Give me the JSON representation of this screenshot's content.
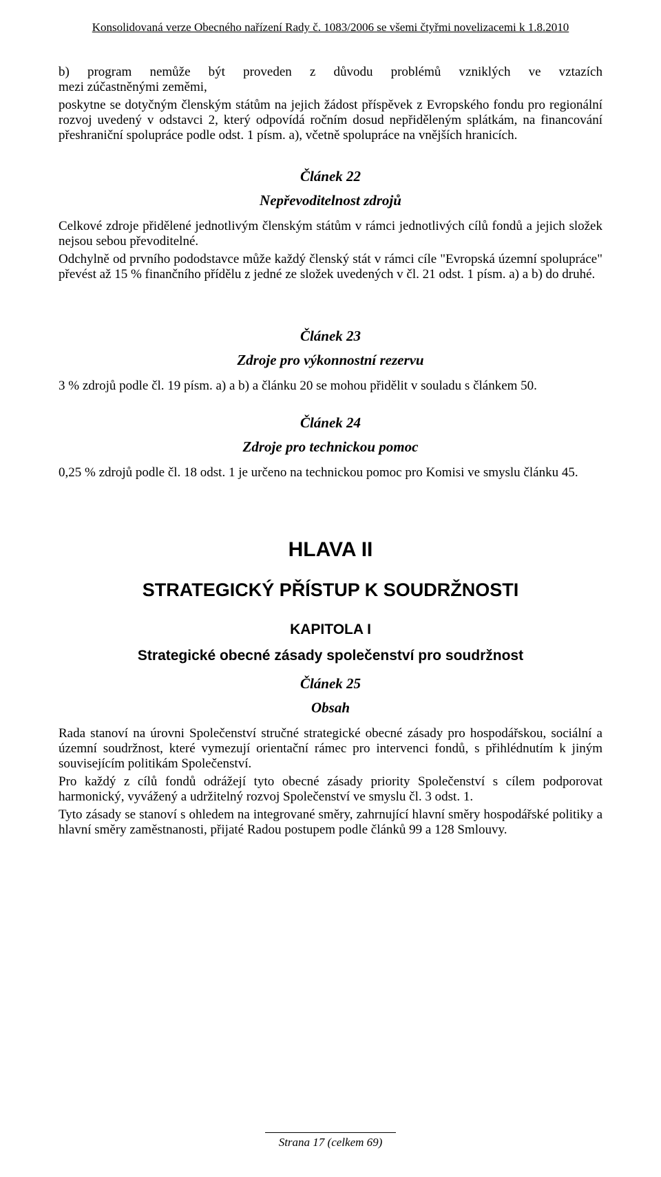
{
  "header": "Konsolidovaná verze Obecného nařízení Rady č. 1083/2006 se všemi čtyřmi novelizacemi k 1.8.2010",
  "intro": {
    "b_line1_parts": [
      "b)",
      "program",
      "nemůže",
      "být",
      "proveden",
      "z",
      "důvodu",
      "problémů",
      "vzniklých",
      "ve",
      "vztazích"
    ],
    "b_line2": "mezi zúčastněnými zeměmi,",
    "b_para2": "poskytne se dotyčným členským státům na jejich žádost příspěvek z Evropského fondu pro regionální rozvoj uvedený v odstavci 2, který odpovídá ročním dosud nepřiděleným splátkám, na financování přeshraniční spolupráce podle odst. 1 písm. a), včetně spolupráce na vnějších hranicích."
  },
  "art22": {
    "title": "Článek 22",
    "subtitle": "Nepřevoditelnost zdrojů",
    "p1": "Celkové zdroje přidělené jednotlivým členským státům v rámci jednotlivých cílů fondů a jejich složek nejsou sebou převoditelné.",
    "p2": "Odchylně od prvního pododstavce může každý členský stát v rámci cíle \"Evropská územní spolupráce\" převést až 15 % finančního přídělu z jedné ze složek uvedených v čl. 21 odst. 1 písm. a) a b) do druhé."
  },
  "art23": {
    "title": "Článek 23",
    "subtitle": "Zdroje pro výkonnostní rezervu",
    "p1": "3 % zdrojů podle čl. 19 písm. a) a b) a článku 20 se mohou přidělit v souladu s článkem 50."
  },
  "art24": {
    "title": "Článek 24",
    "subtitle": "Zdroje pro technickou pomoc",
    "p1": "0,25 % zdrojů podle čl. 18 odst. 1 je určeno na technickou pomoc pro Komisi ve smyslu článku 45."
  },
  "hlava": {
    "label": "HLAVA II",
    "subtitle": "STRATEGICKÝ PŘÍSTUP K SOUDRŽNOSTI"
  },
  "kapitola": {
    "label": "KAPITOLA I",
    "subtitle": "Strategické obecné zásady společenství pro soudržnost"
  },
  "art25": {
    "title": "Článek 25",
    "subtitle": "Obsah",
    "p1": "Rada stanoví na úrovni Společenství stručné strategické obecné zásady pro hospodářskou, sociální a územní soudržnost, které vymezují orientační rámec pro intervenci fondů, s přihlédnutím k jiným souvisejícím politikám Společenství.",
    "p2": "Pro každý z cílů fondů odrážejí tyto obecné zásady priority Společenství s cílem podporovat harmonický, vyvážený a udržitelný rozvoj Společenství ve smyslu čl. 3 odst. 1.",
    "p3": "Tyto zásady se stanoví s ohledem na integrované směry, zahrnující hlavní směry hospodářské politiky a hlavní směry zaměstnanosti, přijaté Radou postupem podle článků 99 a 128 Smlouvy."
  },
  "footer": "Strana 17 (celkem 69)"
}
